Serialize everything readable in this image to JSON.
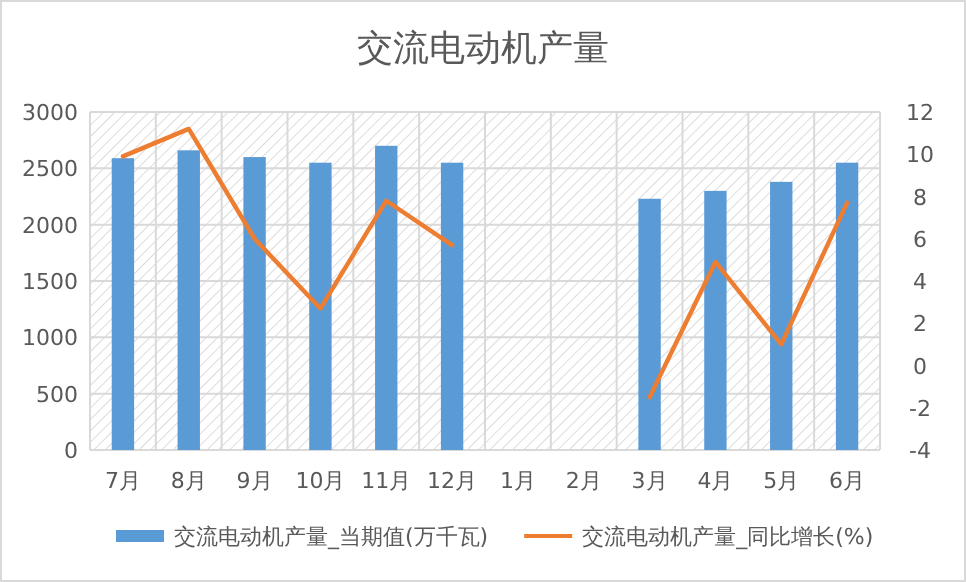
{
  "chart_data": {
    "type": "bar",
    "title": "交流电动机产量",
    "categories": [
      "7月",
      "8月",
      "9月",
      "10月",
      "11月",
      "12月",
      "1月",
      "2月",
      "3月",
      "4月",
      "5月",
      "6月"
    ],
    "series": [
      {
        "name": "交流电动机产量_当期值(万千瓦)",
        "color": "#5b9bd5",
        "values": [
          2590,
          2660,
          2600,
          2550,
          2700,
          2550,
          null,
          null,
          2230,
          2300,
          2380,
          2550
        ]
      },
      {
        "name": "交流电动机产量_同比增长(%)",
        "type": "line",
        "axis": "y2",
        "color": "#ed7d31",
        "values": [
          9.9,
          11.2,
          6.0,
          2.7,
          7.8,
          5.7,
          null,
          null,
          -1.5,
          4.9,
          1.0,
          7.7
        ]
      }
    ],
    "ylim": [
      0,
      3000
    ],
    "yticks": [
      0,
      500,
      1000,
      1500,
      2000,
      2500,
      3000
    ],
    "y2lim": [
      -4,
      12
    ],
    "y2ticks": [
      -4,
      -2,
      0,
      2,
      4,
      6,
      8,
      10,
      12
    ],
    "grid": true,
    "legend": "bottom"
  }
}
